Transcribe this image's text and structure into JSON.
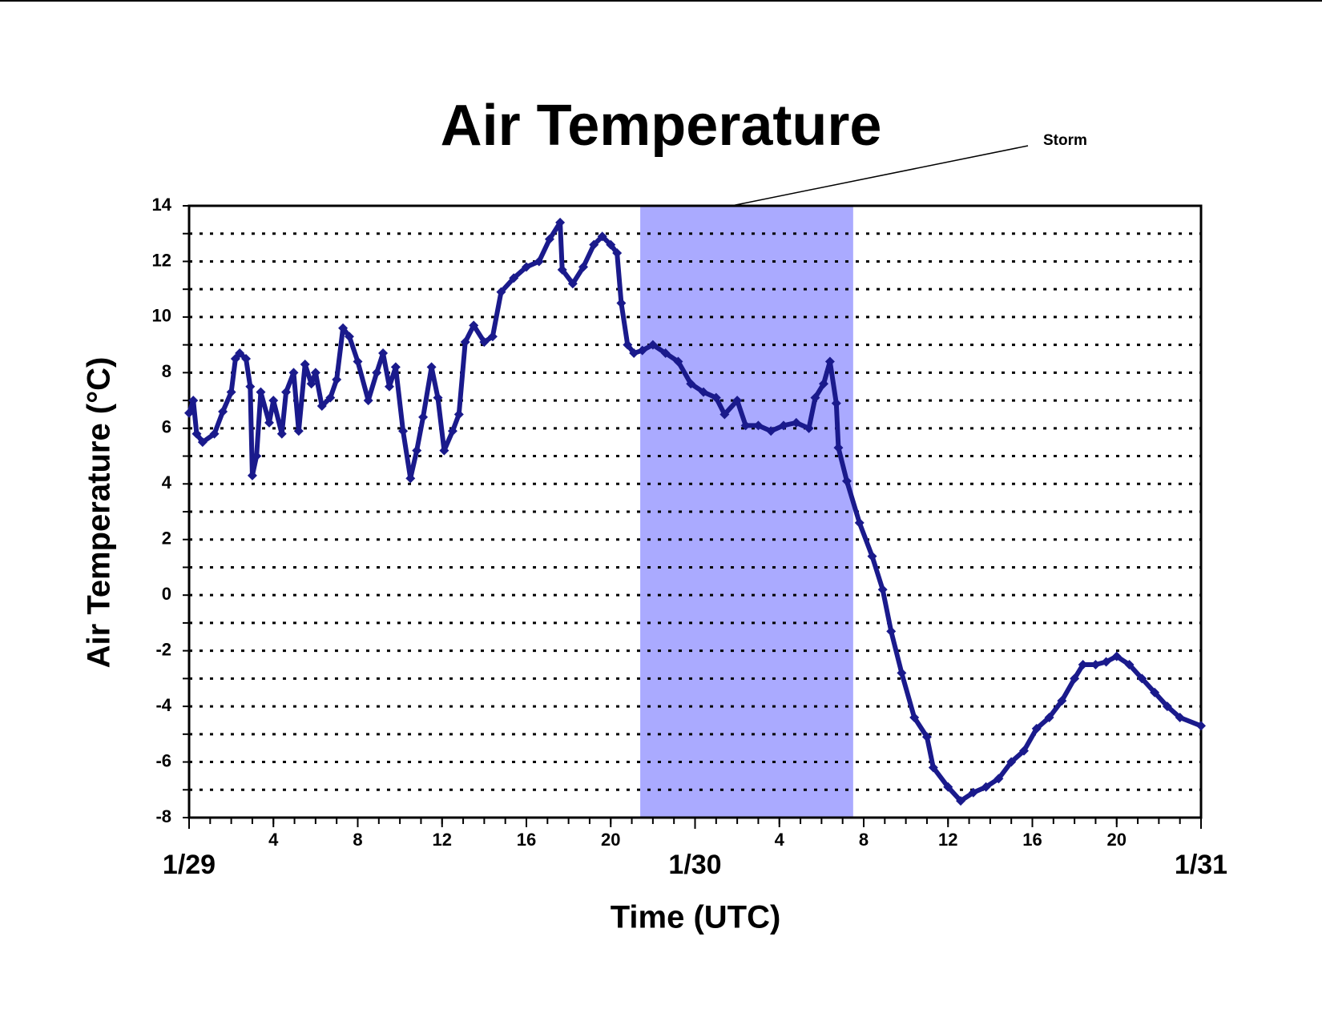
{
  "chart_data": {
    "type": "scatter",
    "title": "Air Temperature",
    "xlabel": "Time (UTC)",
    "ylabel": "Air Temperature (°C)",
    "color": "#1a1a8c",
    "grid": true,
    "xlim": [
      0,
      48
    ],
    "ylim": [
      -8,
      14
    ],
    "yticks": [
      -8,
      -6,
      -4,
      -2,
      0,
      2,
      4,
      6,
      8,
      10,
      12,
      14
    ],
    "yminor": [
      -7,
      -5,
      -3,
      -1,
      1,
      3,
      5,
      7,
      9,
      11,
      13
    ],
    "xticks": [
      4,
      8,
      12,
      16,
      20,
      {
        "value": 28,
        "label": "4"
      },
      {
        "value": 32,
        "label": "8"
      },
      {
        "value": 36,
        "label": "12"
      },
      {
        "value": 40,
        "label": "16"
      },
      {
        "value": 44,
        "label": "20"
      }
    ],
    "date_ticks": [
      {
        "value": 0,
        "label": "1/29"
      },
      {
        "value": 24,
        "label": "1/30"
      },
      {
        "value": 48,
        "label": "1/31"
      }
    ],
    "xminor": [
      0,
      1,
      2,
      3,
      4,
      5,
      6,
      7,
      8,
      9,
      10,
      11,
      12,
      13,
      14,
      15,
      16,
      17,
      18,
      19,
      20,
      21,
      22,
      23,
      24,
      25,
      26,
      27,
      28,
      29,
      30,
      31,
      32,
      33,
      34,
      35,
      36,
      37,
      38,
      39,
      40,
      41,
      42,
      43,
      44,
      45,
      46,
      47,
      48
    ],
    "shaded_region": {
      "xlim": [
        21.4,
        31.5
      ],
      "label": "Storm",
      "color": "#aaaaff"
    },
    "x": [
      0,
      0.2,
      0.36,
      0.64,
      1.2,
      1.6,
      2.0,
      2.2,
      2.4,
      2.7,
      2.9,
      3.0,
      3.2,
      3.4,
      3.8,
      4.0,
      4.4,
      4.6,
      4.96,
      5.2,
      5.5,
      5.8,
      6.0,
      6.3,
      6.7,
      7.0,
      7.3,
      7.6,
      8.0,
      8.5,
      8.9,
      9.2,
      9.5,
      9.8,
      10.15,
      10.5,
      10.8,
      11.1,
      11.5,
      11.8,
      12.1,
      12.5,
      12.8,
      13.1,
      13.5,
      14.0,
      14.4,
      14.8,
      15.4,
      16.0,
      16.6,
      17.1,
      17.6,
      17.7,
      18.2,
      18.7,
      19.2,
      19.6,
      20.0,
      20.3,
      20.5,
      20.8,
      21.1,
      21.5,
      22.0,
      22.6,
      23.2,
      23.8,
      24.4,
      25.0,
      25.4,
      26.0,
      26.4,
      27.0,
      27.6,
      28.2,
      28.8,
      29.4,
      29.7,
      30.1,
      30.4,
      30.7,
      30.8,
      31.2,
      31.8,
      32.4,
      32.9,
      33.3,
      33.8,
      34.4,
      35.0,
      35.3,
      36.0,
      36.6,
      37.2,
      37.8,
      38.4,
      39.0,
      39.6,
      40.2,
      40.8,
      41.4,
      42.0,
      42.4,
      43.0,
      43.5,
      44.0,
      44.6,
      45.2,
      45.8,
      46.4,
      47.0,
      48.0
    ],
    "values": [
      6.55,
      7.0,
      5.8,
      5.5,
      5.8,
      6.6,
      7.3,
      8.5,
      8.7,
      8.5,
      7.5,
      4.3,
      5.0,
      7.3,
      6.2,
      7.0,
      5.8,
      7.3,
      8.0,
      5.9,
      8.3,
      7.6,
      8.0,
      6.8,
      7.1,
      7.75,
      9.6,
      9.3,
      8.4,
      7.0,
      8.0,
      8.7,
      7.5,
      8.2,
      5.9,
      4.2,
      5.2,
      6.4,
      8.2,
      7.1,
      5.2,
      5.9,
      6.5,
      9.1,
      9.7,
      9.1,
      9.3,
      10.9,
      11.4,
      11.8,
      12.0,
      12.8,
      13.4,
      11.7,
      11.2,
      11.8,
      12.6,
      12.9,
      12.6,
      12.3,
      10.5,
      9.0,
      8.7,
      8.8,
      9.0,
      8.7,
      8.4,
      7.6,
      7.3,
      7.1,
      6.5,
      7.0,
      6.1,
      6.1,
      5.9,
      6.1,
      6.2,
      6.0,
      7.1,
      7.6,
      8.4,
      6.9,
      5.3,
      4.1,
      2.6,
      1.4,
      0.2,
      -1.3,
      -2.8,
      -4.4,
      -5.1,
      -6.2,
      -6.9,
      -7.4,
      -7.1,
      -6.9,
      -6.6,
      -6.0,
      -5.6,
      -4.8,
      -4.4,
      -3.8,
      -3.0,
      -2.5,
      -2.5,
      -2.4,
      -2.2,
      -2.5,
      -3.0,
      -3.5,
      -4.0,
      -4.4,
      -4.7
    ]
  }
}
